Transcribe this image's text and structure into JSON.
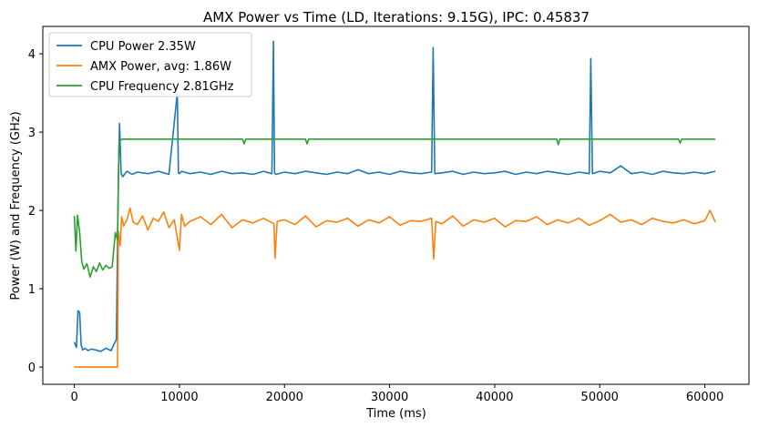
{
  "chart_data": {
    "type": "line",
    "title": "AMX Power vs Time (LD, Iterations: 9.15G), IPC: 0.45837",
    "xlabel": "Time (ms)",
    "ylabel": "Power (W) and Frequency (GHz)",
    "xlim": [
      -3000,
      64200
    ],
    "ylim": [
      -0.22,
      4.35
    ],
    "xticks": [
      0,
      10000,
      20000,
      30000,
      40000,
      50000,
      60000
    ],
    "xtick_labels": [
      "0",
      "10000",
      "20000",
      "30000",
      "40000",
      "50000",
      "60000"
    ],
    "yticks": [
      0,
      1,
      2,
      3,
      4
    ],
    "ytick_labels": [
      "0",
      "1",
      "2",
      "3",
      "4"
    ],
    "grid": false,
    "legend_position": "top-left",
    "series": [
      {
        "name": "CPU Power 2.35W",
        "color": "#1f77b4",
        "x": [
          0,
          200,
          350,
          500,
          650,
          800,
          1000,
          1300,
          1600,
          2000,
          2500,
          3000,
          3500,
          3800,
          4000,
          4200,
          4300,
          4450,
          4600,
          5000,
          5500,
          6000,
          7000,
          8000,
          9000,
          9800,
          9900,
          10000,
          10200,
          11000,
          12000,
          13000,
          14000,
          15000,
          16000,
          17000,
          18000,
          18800,
          18950,
          19050,
          19200,
          20000,
          21000,
          22000,
          23000,
          24000,
          25000,
          26000,
          27000,
          28000,
          29000,
          30000,
          31000,
          32000,
          33000,
          34000,
          34150,
          34300,
          35000,
          36000,
          37000,
          38000,
          39000,
          40000,
          41000,
          42000,
          43000,
          44000,
          45000,
          46000,
          47000,
          48000,
          49000,
          49150,
          49300,
          50000,
          51000,
          52000,
          53000,
          54000,
          55000,
          56000,
          57000,
          58000,
          59000,
          60000,
          61000
        ],
        "values": [
          0.32,
          0.25,
          0.72,
          0.7,
          0.28,
          0.22,
          0.24,
          0.21,
          0.23,
          0.22,
          0.2,
          0.24,
          0.21,
          0.3,
          0.35,
          2.45,
          3.11,
          2.48,
          2.43,
          2.5,
          2.46,
          2.49,
          2.47,
          2.5,
          2.46,
          3.5,
          2.48,
          2.47,
          2.5,
          2.47,
          2.49,
          2.46,
          2.5,
          2.47,
          2.48,
          2.46,
          2.5,
          2.47,
          4.16,
          2.48,
          2.46,
          2.49,
          2.47,
          2.5,
          2.48,
          2.46,
          2.49,
          2.47,
          2.52,
          2.47,
          2.49,
          2.46,
          2.5,
          2.48,
          2.47,
          2.49,
          4.08,
          2.47,
          2.48,
          2.5,
          2.46,
          2.49,
          2.47,
          2.48,
          2.5,
          2.46,
          2.49,
          2.47,
          2.5,
          2.48,
          2.46,
          2.49,
          2.47,
          3.94,
          2.47,
          2.5,
          2.48,
          2.57,
          2.47,
          2.49,
          2.46,
          2.5,
          2.48,
          2.47,
          2.49,
          2.47,
          2.5
        ]
      },
      {
        "name": "AMX Power, avg: 1.86W",
        "color": "#ff7f0e",
        "x": [
          0,
          500,
          1000,
          2000,
          3000,
          3800,
          4100,
          4200,
          4350,
          4500,
          4700,
          5000,
          5300,
          5600,
          6000,
          6500,
          7000,
          7500,
          8000,
          8500,
          9000,
          9500,
          10000,
          10200,
          10500,
          11000,
          12000,
          13000,
          14000,
          15000,
          16000,
          17000,
          18000,
          19000,
          19100,
          19300,
          20000,
          21000,
          22000,
          23000,
          24000,
          25000,
          26000,
          27000,
          28000,
          29000,
          30000,
          31000,
          32000,
          33000,
          34000,
          34200,
          34400,
          35000,
          36000,
          37000,
          38000,
          39000,
          40000,
          41000,
          42000,
          43000,
          44000,
          45000,
          46000,
          47000,
          48000,
          49000,
          50000,
          51000,
          52000,
          53000,
          54000,
          55000,
          56000,
          57000,
          58000,
          59000,
          60000,
          60500,
          61000
        ],
        "values": [
          0.0,
          0.0,
          0.0,
          0.0,
          0.0,
          0.0,
          0.0,
          1.73,
          1.55,
          1.92,
          1.8,
          1.88,
          2.03,
          1.85,
          1.82,
          1.93,
          1.75,
          1.9,
          1.86,
          1.98,
          1.78,
          1.88,
          1.49,
          1.95,
          1.8,
          1.86,
          1.92,
          1.82,
          1.95,
          1.78,
          1.88,
          1.84,
          1.9,
          1.83,
          1.39,
          1.86,
          1.88,
          1.82,
          1.93,
          1.79,
          1.87,
          1.85,
          1.9,
          1.8,
          1.88,
          1.84,
          1.92,
          1.81,
          1.87,
          1.86,
          1.9,
          1.38,
          1.86,
          1.83,
          1.93,
          1.8,
          1.88,
          1.85,
          1.9,
          1.79,
          1.87,
          1.86,
          1.92,
          1.82,
          1.88,
          1.84,
          1.9,
          1.81,
          1.87,
          1.95,
          1.85,
          1.88,
          1.82,
          1.9,
          1.86,
          1.84,
          1.88,
          1.83,
          1.87,
          2.0,
          1.85
        ]
      },
      {
        "name": "CPU Frequency 2.81GHz",
        "color": "#2ca02c",
        "x": [
          0,
          150,
          300,
          500,
          700,
          900,
          1200,
          1500,
          1800,
          2100,
          2400,
          2700,
          3000,
          3300,
          3600,
          3900,
          4100,
          4250,
          4400,
          4600,
          5000,
          6000,
          7000,
          8000,
          9000,
          10000,
          11000,
          12000,
          13000,
          14000,
          15000,
          16000,
          16150,
          16300,
          17000,
          18000,
          19000,
          20000,
          21000,
          22000,
          22150,
          22300,
          23000,
          25000,
          27000,
          29000,
          31000,
          33000,
          35000,
          37000,
          39000,
          41000,
          43000,
          45000,
          45900,
          46050,
          46200,
          47000,
          49000,
          51000,
          53000,
          55000,
          57000,
          57500,
          57650,
          57800,
          59000,
          61000
        ],
        "values": [
          1.93,
          1.48,
          1.94,
          1.72,
          1.35,
          1.25,
          1.32,
          1.15,
          1.28,
          1.22,
          1.33,
          1.24,
          1.3,
          1.26,
          1.28,
          1.72,
          1.62,
          2.85,
          2.9,
          2.91,
          2.91,
          2.91,
          2.91,
          2.91,
          2.91,
          2.91,
          2.91,
          2.91,
          2.91,
          2.91,
          2.91,
          2.91,
          2.85,
          2.91,
          2.91,
          2.91,
          2.91,
          2.91,
          2.91,
          2.91,
          2.85,
          2.91,
          2.91,
          2.91,
          2.91,
          2.91,
          2.91,
          2.91,
          2.91,
          2.91,
          2.91,
          2.91,
          2.91,
          2.91,
          2.91,
          2.84,
          2.91,
          2.91,
          2.91,
          2.91,
          2.91,
          2.91,
          2.91,
          2.91,
          2.86,
          2.91,
          2.91,
          2.91
        ]
      }
    ]
  }
}
